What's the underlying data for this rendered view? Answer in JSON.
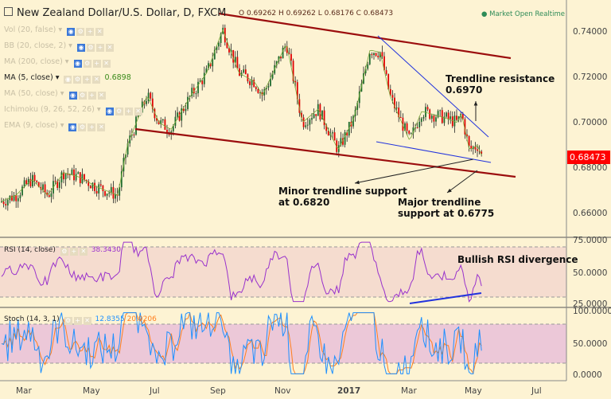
{
  "header": {
    "symbol": "New Zealand Dollar/U.S. Dollar, D, FXCM",
    "ohlc": "O 0.69262  H 0.69262  L 0.68176  C 0.68473",
    "market_status": "● Market Open  Realtime"
  },
  "indicators": [
    {
      "label": "Vol (20, false)",
      "active": false
    },
    {
      "label": "BB (20, close, 2)",
      "active": false
    },
    {
      "label": "MA (200, close)",
      "active": false
    },
    {
      "label": "MA (5, close)",
      "active": true,
      "value": "0.6898"
    },
    {
      "label": "MA (50, close)",
      "active": false
    },
    {
      "label": "Ichimoku (9, 26, 52, 26)",
      "active": false
    },
    {
      "label": "EMA (9, close)",
      "active": false
    }
  ],
  "price_axis": [
    "0.74000",
    "0.72000",
    "0.70000",
    "0.68000",
    "0.66000"
  ],
  "last_price": "0.68473",
  "rsi": {
    "label": "RSI (14, close)",
    "value": "38.3430",
    "axis": [
      "75.0000",
      "50.0000",
      "25.0000"
    ]
  },
  "stoch": {
    "label": "Stoch (14, 3, 1)",
    "k": "12.8355",
    "d": "20.9206",
    "axis": [
      "100.0000",
      "50.0000",
      "0.0000"
    ]
  },
  "x_axis": [
    "Mar",
    "May",
    "Jul",
    "Sep",
    "Nov",
    "2017",
    "Mar",
    "May",
    "Jul"
  ],
  "annotations": {
    "resistance": [
      "Trendline resistance",
      "0.6970"
    ],
    "minor": [
      "Minor trendline support",
      "at 0.6820"
    ],
    "major": [
      "Major trendline",
      "support at 0.6775"
    ],
    "rsi_div": "Bullish RSI divergence"
  },
  "colors": {
    "up": "#1e6b2e",
    "down": "#e00000",
    "trend": "#9b0d0d",
    "blue_line": "#2233dd",
    "rsi": "#9932cc",
    "stoch_k": "#1e90ff",
    "stoch_d": "#ff7f1e",
    "last": "#ff0000"
  }
}
